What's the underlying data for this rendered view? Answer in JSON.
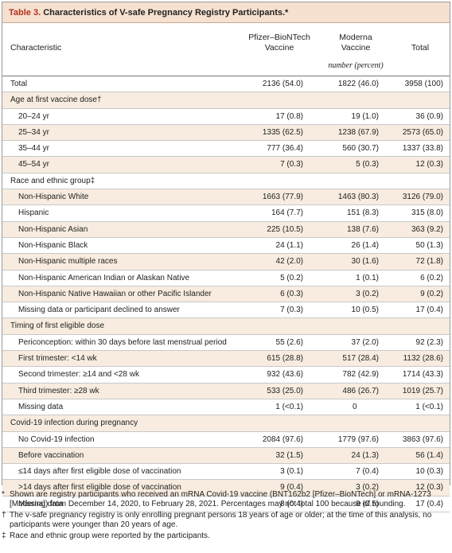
{
  "table": {
    "label": "Table 3.",
    "title": "Characteristics of V-safe Pregnancy Registry Participants.*",
    "columns": {
      "characteristic": "Characteristic",
      "pfizer_line1": "Pfizer–BioNTech",
      "pfizer_line2": "Vaccine",
      "moderna_line1": "Moderna",
      "moderna_line2": "Vaccine",
      "total": "Total",
      "unit": "number (percent)"
    },
    "rows": [
      {
        "label": "Total",
        "pfizer": "2136 (54.0)",
        "moderna": "1822 (46.0)",
        "total": "3958 (100)"
      },
      {
        "label": "Age at first vaccine dose†",
        "pfizer": "",
        "moderna": "",
        "total": ""
      },
      {
        "label": "20–24 yr",
        "pfizer": "17 (0.8)",
        "moderna": "19 (1.0)",
        "total": "36 (0.9)"
      },
      {
        "label": "25–34 yr",
        "pfizer": "1335 (62.5)",
        "moderna": "1238 (67.9)",
        "total": "2573 (65.0)"
      },
      {
        "label": "35–44 yr",
        "pfizer": "777 (36.4)",
        "moderna": "560 (30.7)",
        "total": "1337 (33.8)"
      },
      {
        "label": "45–54 yr",
        "pfizer": "7 (0.3)",
        "moderna": "5 (0.3)",
        "total": "12 (0.3)"
      },
      {
        "label": "Race and ethnic group‡",
        "pfizer": "",
        "moderna": "",
        "total": ""
      },
      {
        "label": "Non-Hispanic White",
        "pfizer": "1663 (77.9)",
        "moderna": "1463 (80.3)",
        "total": "3126 (79.0)"
      },
      {
        "label": "Hispanic",
        "pfizer": "164 (7.7)",
        "moderna": "151 (8.3)",
        "total": "315 (8.0)"
      },
      {
        "label": "Non-Hispanic Asian",
        "pfizer": "225 (10.5)",
        "moderna": "138 (7.6)",
        "total": "363 (9.2)"
      },
      {
        "label": "Non-Hispanic Black",
        "pfizer": "24 (1.1)",
        "moderna": "26 (1.4)",
        "total": "50 (1.3)"
      },
      {
        "label": "Non-Hispanic multiple races",
        "pfizer": "42 (2.0)",
        "moderna": "30 (1.6)",
        "total": "72 (1.8)"
      },
      {
        "label": "Non-Hispanic American Indian or Alaskan Native",
        "pfizer": "5 (0.2)",
        "moderna": "1 (0.1)",
        "total": "6 (0.2)"
      },
      {
        "label": "Non-Hispanic Native Hawaiian or other Pacific Islander",
        "pfizer": "6 (0.3)",
        "moderna": "3 (0.2)",
        "total": "9 (0.2)"
      },
      {
        "label": "Missing data or participant declined to answer",
        "pfizer": "7 (0.3)",
        "moderna": "10 (0.5)",
        "total": "17 (0.4)"
      },
      {
        "label": "Timing of first eligible dose",
        "pfizer": "",
        "moderna": "",
        "total": ""
      },
      {
        "label": "Periconception: within 30 days before last menstrual period",
        "pfizer": "55 (2.6)",
        "moderna": "37 (2.0)",
        "total": "92 (2.3)"
      },
      {
        "label": "First trimester: <14 wk",
        "pfizer": "615 (28.8)",
        "moderna": "517 (28.4)",
        "total": "1132 (28.6)"
      },
      {
        "label": "Second trimester: ≥14 and <28 wk",
        "pfizer": "932 (43.6)",
        "moderna": "782 (42.9)",
        "total": "1714 (43.3)"
      },
      {
        "label": "Third trimester: ≥28 wk",
        "pfizer": "533 (25.0)",
        "moderna": "486 (26.7)",
        "total": "1019 (25.7)"
      },
      {
        "label": "Missing data",
        "pfizer": "1 (<0.1)",
        "moderna": "0",
        "total": "1 (<0.1)"
      },
      {
        "label": "Covid-19 infection during pregnancy",
        "pfizer": "",
        "moderna": "",
        "total": ""
      },
      {
        "label": "No Covid-19 infection",
        "pfizer": "2084 (97.6)",
        "moderna": "1779 (97.6)",
        "total": "3863 (97.6)"
      },
      {
        "label": "Before vaccination",
        "pfizer": "32 (1.5)",
        "moderna": "24 (1.3)",
        "total": "56 (1.4)"
      },
      {
        "label": "≤14 days after first eligible dose of vaccination",
        "pfizer": "3 (0.1)",
        "moderna": "7 (0.4)",
        "total": "10 (0.3)"
      },
      {
        "label": ">14 days after first eligible dose of vaccination",
        "pfizer": "9 (0.4)",
        "moderna": "3 (0.2)",
        "total": "12 (0.3)"
      },
      {
        "label": "Missing data",
        "pfizer": "8 (0.4)",
        "moderna": "9 (0.5)",
        "total": "17 (0.4)"
      }
    ],
    "footnotes": [
      {
        "mark": "*",
        "text": "Shown are registry participants who received an mRNA Covid-19 vaccine (BNT162b2 [Pfizer–BioNTech] or mRNA-1273 [Moderna]) from December 14, 2020, to February 28, 2021. Percentages may not total 100 because of rounding."
      },
      {
        "mark": "†",
        "text": "The v-safe pregnancy registry is only enrolling pregnant persons 18 years of age or older; at the time of this analysis, no participants were younger than 20 years of age."
      },
      {
        "mark": "‡",
        "text": "Race and ethnic group were reported by the participants."
      }
    ]
  }
}
